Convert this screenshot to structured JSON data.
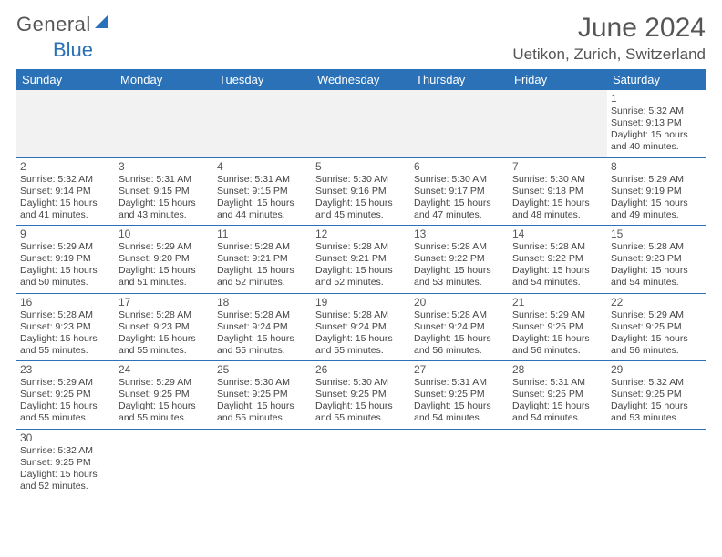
{
  "brand": {
    "part1": "General",
    "part2": "Blue"
  },
  "title": "June 2024",
  "location": "Uetikon, Zurich, Switzerland",
  "colors": {
    "header_bg": "#2a71b8",
    "header_fg": "#ffffff",
    "rule": "#2a71b8",
    "empty_bg": "#f2f2f2",
    "text": "#444444",
    "title": "#555555"
  },
  "columns": [
    "Sunday",
    "Monday",
    "Tuesday",
    "Wednesday",
    "Thursday",
    "Friday",
    "Saturday"
  ],
  "weeks": [
    [
      null,
      null,
      null,
      null,
      null,
      null,
      {
        "n": "1",
        "sr": "5:32 AM",
        "ss": "9:13 PM",
        "dl": "15 hours and 40 minutes."
      }
    ],
    [
      {
        "n": "2",
        "sr": "5:32 AM",
        "ss": "9:14 PM",
        "dl": "15 hours and 41 minutes."
      },
      {
        "n": "3",
        "sr": "5:31 AM",
        "ss": "9:15 PM",
        "dl": "15 hours and 43 minutes."
      },
      {
        "n": "4",
        "sr": "5:31 AM",
        "ss": "9:15 PM",
        "dl": "15 hours and 44 minutes."
      },
      {
        "n": "5",
        "sr": "5:30 AM",
        "ss": "9:16 PM",
        "dl": "15 hours and 45 minutes."
      },
      {
        "n": "6",
        "sr": "5:30 AM",
        "ss": "9:17 PM",
        "dl": "15 hours and 47 minutes."
      },
      {
        "n": "7",
        "sr": "5:30 AM",
        "ss": "9:18 PM",
        "dl": "15 hours and 48 minutes."
      },
      {
        "n": "8",
        "sr": "5:29 AM",
        "ss": "9:19 PM",
        "dl": "15 hours and 49 minutes."
      }
    ],
    [
      {
        "n": "9",
        "sr": "5:29 AM",
        "ss": "9:19 PM",
        "dl": "15 hours and 50 minutes."
      },
      {
        "n": "10",
        "sr": "5:29 AM",
        "ss": "9:20 PM",
        "dl": "15 hours and 51 minutes."
      },
      {
        "n": "11",
        "sr": "5:28 AM",
        "ss": "9:21 PM",
        "dl": "15 hours and 52 minutes."
      },
      {
        "n": "12",
        "sr": "5:28 AM",
        "ss": "9:21 PM",
        "dl": "15 hours and 52 minutes."
      },
      {
        "n": "13",
        "sr": "5:28 AM",
        "ss": "9:22 PM",
        "dl": "15 hours and 53 minutes."
      },
      {
        "n": "14",
        "sr": "5:28 AM",
        "ss": "9:22 PM",
        "dl": "15 hours and 54 minutes."
      },
      {
        "n": "15",
        "sr": "5:28 AM",
        "ss": "9:23 PM",
        "dl": "15 hours and 54 minutes."
      }
    ],
    [
      {
        "n": "16",
        "sr": "5:28 AM",
        "ss": "9:23 PM",
        "dl": "15 hours and 55 minutes."
      },
      {
        "n": "17",
        "sr": "5:28 AM",
        "ss": "9:23 PM",
        "dl": "15 hours and 55 minutes."
      },
      {
        "n": "18",
        "sr": "5:28 AM",
        "ss": "9:24 PM",
        "dl": "15 hours and 55 minutes."
      },
      {
        "n": "19",
        "sr": "5:28 AM",
        "ss": "9:24 PM",
        "dl": "15 hours and 55 minutes."
      },
      {
        "n": "20",
        "sr": "5:28 AM",
        "ss": "9:24 PM",
        "dl": "15 hours and 56 minutes."
      },
      {
        "n": "21",
        "sr": "5:29 AM",
        "ss": "9:25 PM",
        "dl": "15 hours and 56 minutes."
      },
      {
        "n": "22",
        "sr": "5:29 AM",
        "ss": "9:25 PM",
        "dl": "15 hours and 56 minutes."
      }
    ],
    [
      {
        "n": "23",
        "sr": "5:29 AM",
        "ss": "9:25 PM",
        "dl": "15 hours and 55 minutes."
      },
      {
        "n": "24",
        "sr": "5:29 AM",
        "ss": "9:25 PM",
        "dl": "15 hours and 55 minutes."
      },
      {
        "n": "25",
        "sr": "5:30 AM",
        "ss": "9:25 PM",
        "dl": "15 hours and 55 minutes."
      },
      {
        "n": "26",
        "sr": "5:30 AM",
        "ss": "9:25 PM",
        "dl": "15 hours and 55 minutes."
      },
      {
        "n": "27",
        "sr": "5:31 AM",
        "ss": "9:25 PM",
        "dl": "15 hours and 54 minutes."
      },
      {
        "n": "28",
        "sr": "5:31 AM",
        "ss": "9:25 PM",
        "dl": "15 hours and 54 minutes."
      },
      {
        "n": "29",
        "sr": "5:32 AM",
        "ss": "9:25 PM",
        "dl": "15 hours and 53 minutes."
      }
    ],
    [
      {
        "n": "30",
        "sr": "5:32 AM",
        "ss": "9:25 PM",
        "dl": "15 hours and 52 minutes."
      },
      null,
      null,
      null,
      null,
      null,
      null
    ]
  ],
  "labels": {
    "sunrise": "Sunrise:",
    "sunset": "Sunset:",
    "daylight": "Daylight:"
  }
}
